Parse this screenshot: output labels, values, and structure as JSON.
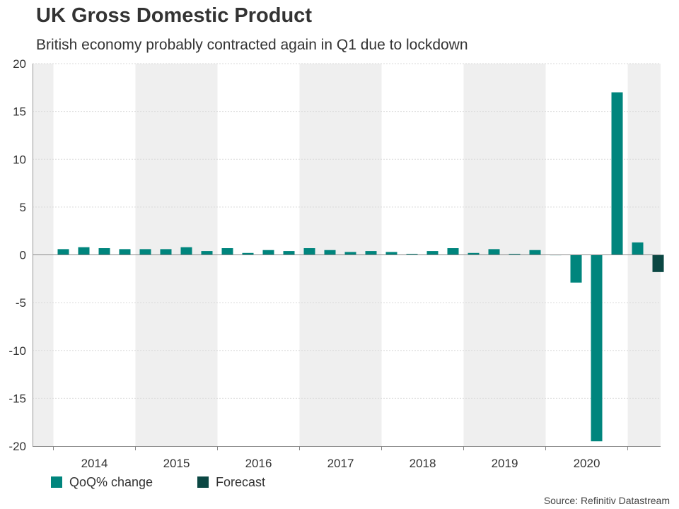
{
  "header": {
    "title": "UK Gross Domestic Product",
    "subtitle": "British economy probably contracted again in Q1 due to lockdown"
  },
  "source": "Source: Refinitiv Datastream",
  "colors": {
    "actual": "#00857D",
    "forecast": "#0B4743",
    "band": "#EFEFEF"
  },
  "legend": [
    {
      "label": "QoQ% change",
      "color": "#00857D"
    },
    {
      "label": "Forecast",
      "color": "#0B4743"
    }
  ],
  "chart_data": {
    "type": "bar",
    "ylim": [
      -20,
      20
    ],
    "yticks": [
      20,
      15,
      10,
      5,
      0,
      -5,
      -10,
      -15,
      -20
    ],
    "year_labels": [
      "2014",
      "2015",
      "2016",
      "2017",
      "2018",
      "2019",
      "2020"
    ],
    "grid": true,
    "alternating_year_bands": true,
    "legend_position": "bottom-left",
    "series": [
      {
        "name": "QoQ% change",
        "values": [
          0.6,
          0.8,
          0.7,
          0.6,
          0.6,
          0.6,
          0.8,
          0.4,
          0.7,
          0.2,
          0.5,
          0.4,
          0.7,
          0.5,
          0.3,
          0.4,
          0.3,
          0.1,
          0.4,
          0.7,
          0.2,
          0.6,
          0.1,
          0.5,
          0.0,
          -2.9,
          -19.5,
          17.0,
          1.3
        ]
      },
      {
        "name": "Forecast",
        "values": [
          -1.8
        ]
      }
    ]
  }
}
